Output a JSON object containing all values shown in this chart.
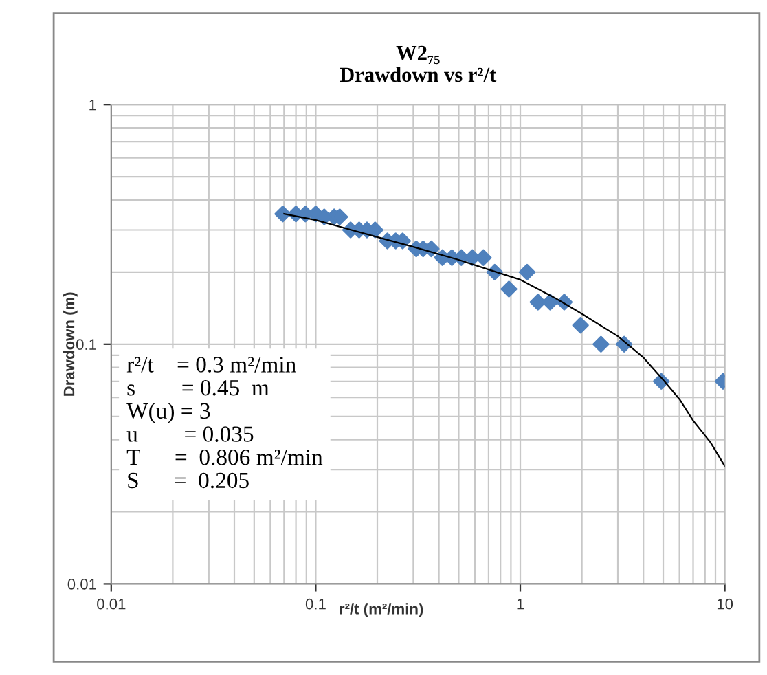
{
  "chart_data": {
    "type": "scatter",
    "title": "W2₇₅\nDrawdown vs r²/t",
    "xlabel": "r²/t (m²/min)",
    "ylabel": "Drawdown (m)",
    "log": "xy",
    "xlim": [
      0.01,
      10
    ],
    "ylim": [
      0.01,
      1
    ],
    "xticks": [
      0.01,
      0.1,
      1,
      10
    ],
    "yticks": [
      0.01,
      0.1,
      1
    ],
    "grid": true,
    "legend": false,
    "marker": "diamond",
    "series": [
      {
        "color": "#4f81bd",
        "x": [
          0.069,
          0.08,
          0.089,
          0.1,
          0.11,
          0.123,
          0.131,
          0.148,
          0.163,
          0.178,
          0.195,
          0.224,
          0.246,
          0.266,
          0.31,
          0.335,
          0.367,
          0.416,
          0.463,
          0.515,
          0.583,
          0.66,
          0.75,
          0.88,
          1.08,
          1.22,
          1.4,
          1.64,
          1.97,
          2.48,
          3.22,
          4.89,
          9.8
        ],
        "values": [
          0.35,
          0.35,
          0.35,
          0.35,
          0.34,
          0.34,
          0.34,
          0.3,
          0.3,
          0.3,
          0.3,
          0.27,
          0.27,
          0.27,
          0.25,
          0.25,
          0.25,
          0.23,
          0.23,
          0.23,
          0.23,
          0.23,
          0.2,
          0.17,
          0.2,
          0.15,
          0.15,
          0.15,
          0.12,
          0.1,
          0.1,
          0.07,
          0.07
        ]
      },
      {
        "type": "line",
        "color": "#000000",
        "marker": "none",
        "x": [
          0.07,
          0.1,
          0.2,
          0.3,
          0.5,
          0.7,
          1,
          1.5,
          2,
          3,
          4,
          5,
          6,
          7,
          8.5,
          10
        ],
        "values": [
          0.35,
          0.33,
          0.28,
          0.255,
          0.225,
          0.205,
          0.186,
          0.155,
          0.134,
          0.108,
          0.088,
          0.071,
          0.059,
          0.048,
          0.039,
          0.031
        ]
      }
    ],
    "annotations": [
      "r²/t    = 0.3 m²/min",
      "s        = 0.45  m",
      "W(u) = 3",
      "u        = 0.035",
      "T      =  0.806 m²/min",
      "S      =  0.205"
    ]
  }
}
